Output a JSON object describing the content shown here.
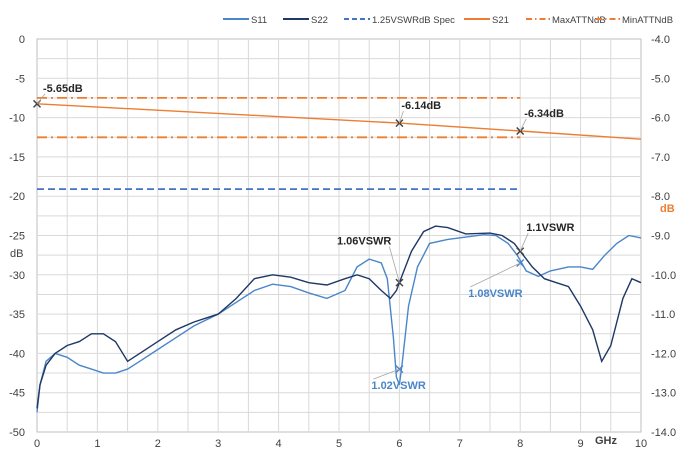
{
  "chart_data": {
    "type": "line",
    "x_unit_label": "GHz",
    "left_axis": {
      "label": "dB",
      "range": [
        -50,
        0
      ],
      "ticks": [
        "0",
        "-5",
        "-10",
        "-15",
        "-20",
        "-25",
        "-30",
        "-35",
        "-40",
        "-45",
        "-50"
      ]
    },
    "right_axis": {
      "label": "dB",
      "range": [
        -14,
        -4
      ],
      "ticks": [
        "-4.0",
        "-5.0",
        "-6.0",
        "-7.0",
        "-8.0",
        "-9.0",
        "-10.0",
        "-11.0",
        "-12.0",
        "-13.0",
        "-14.0"
      ]
    },
    "x_axis": {
      "range": [
        0,
        10
      ],
      "ticks": [
        "0",
        "1",
        "2",
        "3",
        "4",
        "5",
        "6",
        "7",
        "8",
        "9",
        "10"
      ]
    },
    "grid": true,
    "legend_position": "top",
    "colors": {
      "s11": "#4a86c8",
      "s22": "#1f3864",
      "spec": "#4472c4",
      "s21": "#ed7d31",
      "limits": "#ed7d31",
      "marker": "#404040",
      "grid": "#d9d9d9"
    },
    "series": [
      {
        "name": "S11",
        "axis": "left",
        "style": "solid",
        "points": [
          [
            0,
            -47.5
          ],
          [
            0.05,
            -44
          ],
          [
            0.15,
            -41
          ],
          [
            0.3,
            -40
          ],
          [
            0.5,
            -40.5
          ],
          [
            0.7,
            -41.5
          ],
          [
            0.9,
            -42
          ],
          [
            1.1,
            -42.5
          ],
          [
            1.3,
            -42.5
          ],
          [
            1.5,
            -42
          ],
          [
            1.7,
            -41
          ],
          [
            2,
            -39.5
          ],
          [
            2.3,
            -38
          ],
          [
            2.6,
            -36.5
          ],
          [
            3,
            -35
          ],
          [
            3.3,
            -33.5
          ],
          [
            3.6,
            -32
          ],
          [
            3.9,
            -31.2
          ],
          [
            4.2,
            -31.5
          ],
          [
            4.5,
            -32.3
          ],
          [
            4.8,
            -33
          ],
          [
            5.1,
            -32
          ],
          [
            5.3,
            -29
          ],
          [
            5.5,
            -28
          ],
          [
            5.7,
            -28.5
          ],
          [
            5.8,
            -30.5
          ],
          [
            5.9,
            -38
          ],
          [
            5.95,
            -43
          ],
          [
            6.0,
            -44
          ],
          [
            6.05,
            -41
          ],
          [
            6.15,
            -34
          ],
          [
            6.3,
            -29
          ],
          [
            6.5,
            -26
          ],
          [
            6.8,
            -25.5
          ],
          [
            7.1,
            -25.2
          ],
          [
            7.4,
            -24.9
          ],
          [
            7.6,
            -25
          ],
          [
            7.8,
            -26
          ],
          [
            7.95,
            -27.5
          ],
          [
            8.1,
            -29.5
          ],
          [
            8.3,
            -30.2
          ],
          [
            8.5,
            -29.5
          ],
          [
            8.8,
            -29
          ],
          [
            9.0,
            -29
          ],
          [
            9.2,
            -29.3
          ],
          [
            9.4,
            -27.5
          ],
          [
            9.6,
            -26
          ],
          [
            9.8,
            -25
          ],
          [
            10,
            -25.3
          ]
        ]
      },
      {
        "name": "S22",
        "axis": "left",
        "style": "solid",
        "points": [
          [
            0,
            -47
          ],
          [
            0.05,
            -44
          ],
          [
            0.15,
            -41.5
          ],
          [
            0.3,
            -40
          ],
          [
            0.5,
            -39
          ],
          [
            0.7,
            -38.5
          ],
          [
            0.9,
            -37.5
          ],
          [
            1.1,
            -37.5
          ],
          [
            1.3,
            -38.5
          ],
          [
            1.5,
            -41
          ],
          [
            1.7,
            -40
          ],
          [
            2,
            -38.5
          ],
          [
            2.3,
            -37
          ],
          [
            2.6,
            -36
          ],
          [
            3,
            -35
          ],
          [
            3.3,
            -33
          ],
          [
            3.6,
            -30.5
          ],
          [
            3.9,
            -30
          ],
          [
            4.2,
            -30.3
          ],
          [
            4.5,
            -31
          ],
          [
            4.8,
            -31.3
          ],
          [
            5.1,
            -30.5
          ],
          [
            5.3,
            -30
          ],
          [
            5.5,
            -30.5
          ],
          [
            5.7,
            -32
          ],
          [
            5.85,
            -33
          ],
          [
            5.95,
            -32
          ],
          [
            6.05,
            -30
          ],
          [
            6.2,
            -27
          ],
          [
            6.4,
            -24.5
          ],
          [
            6.6,
            -23.8
          ],
          [
            6.8,
            -24
          ],
          [
            7.1,
            -24.8
          ],
          [
            7.5,
            -24.7
          ],
          [
            7.7,
            -25
          ],
          [
            7.9,
            -26
          ],
          [
            8.0,
            -27
          ],
          [
            8.2,
            -29
          ],
          [
            8.4,
            -30.5
          ],
          [
            8.6,
            -31
          ],
          [
            8.8,
            -31.5
          ],
          [
            9.0,
            -34
          ],
          [
            9.2,
            -37
          ],
          [
            9.35,
            -41
          ],
          [
            9.5,
            -39
          ],
          [
            9.7,
            -33
          ],
          [
            9.85,
            -30.5
          ],
          [
            10,
            -31
          ]
        ]
      },
      {
        "name": "1.25VSWRdB Spec",
        "axis": "left",
        "style": "dash",
        "points": [
          [
            0,
            -19.1
          ],
          [
            8,
            -19.1
          ]
        ]
      },
      {
        "name": "S21",
        "axis": "right",
        "style": "solid",
        "points": [
          [
            0,
            -5.65
          ],
          [
            6,
            -6.14
          ],
          [
            8,
            -6.34
          ],
          [
            10,
            -6.55
          ]
        ]
      },
      {
        "name": "MaxATTNdB",
        "axis": "right",
        "style": "dashdot",
        "points": [
          [
            0,
            -5.5
          ],
          [
            8,
            -5.5
          ]
        ]
      },
      {
        "name": "MinATTNdB",
        "axis": "right",
        "style": "dashdot",
        "points": [
          [
            0,
            -6.5
          ],
          [
            8,
            -6.5
          ]
        ]
      }
    ],
    "markers": [
      {
        "x": 0,
        "y": -5.65,
        "axis": "right",
        "label": "-5.65dB",
        "color": "#262626"
      },
      {
        "x": 6,
        "y": -6.14,
        "axis": "right",
        "label": "-6.14dB",
        "color": "#262626"
      },
      {
        "x": 8,
        "y": -6.34,
        "axis": "right",
        "label": "-6.34dB",
        "color": "#262626"
      },
      {
        "x": 6,
        "y": -31,
        "axis": "left",
        "label": "1.06VSWR",
        "color": "#262626"
      },
      {
        "x": 8,
        "y": -27,
        "axis": "left",
        "label": "1.1VSWR",
        "color": "#262626"
      },
      {
        "x": 6,
        "y": -42,
        "axis": "left",
        "label": "1.02VSWR",
        "color": "#4a86c8"
      },
      {
        "x": 8,
        "y": -28.5,
        "axis": "left",
        "label": "1.08VSWR",
        "color": "#4a86c8"
      }
    ]
  }
}
